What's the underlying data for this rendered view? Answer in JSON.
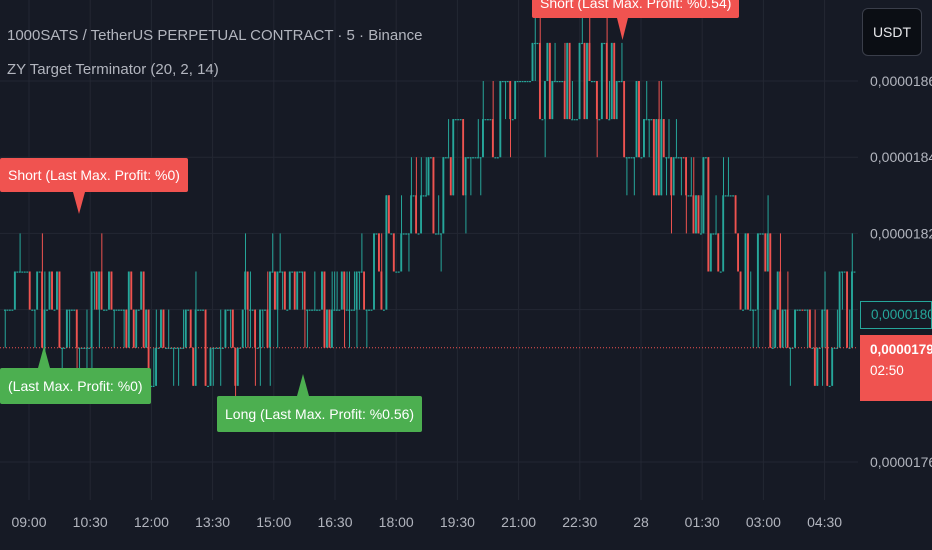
{
  "header": {
    "symbol_line": "1000SATS / TetherUS PERPETUAL CONTRACT · 5 · Binance",
    "indicator_line": "ZY Target Terminator (20, 2, 14)",
    "currency_button": "USDT"
  },
  "labels": {
    "short_top": "Short (Last Max. Profit: %0.54)",
    "short_left": "Short (Last Max. Profit: %0)",
    "long_left": "(Last Max. Profit: %0)",
    "long_mid": "Long (Last Max. Profit: %0.56)"
  },
  "price_tags": {
    "prev_price": "0,0000180",
    "last_price": "0,0000179",
    "countdown": "02:50"
  },
  "colors": {
    "background": "#161a25",
    "up": "#26a69a",
    "down": "#ef5350",
    "grid": "#232733",
    "axis_text": "#b2b5be",
    "short_label": "#f05350",
    "long_label": "#4caf50"
  },
  "chart_data": {
    "type": "candlestick",
    "grid": true,
    "y_axis": {
      "position": "right",
      "min": 1.755e-05,
      "max": 1.877e-05,
      "ticks": [
        1.86e-05,
        1.84e-05,
        1.82e-05,
        1.8e-05,
        1.76e-05
      ],
      "tick_labels": [
        "0,0000186",
        "0,0000184",
        "0,0000182",
        "0,0000180",
        "0,0000176"
      ]
    },
    "x_axis": {
      "tick_labels": [
        "09:00",
        "10:30",
        "12:00",
        "13:30",
        "15:00",
        "16:30",
        "18:00",
        "19:30",
        "21:00",
        "22:30",
        "28",
        "01:30",
        "03:00",
        "04:30"
      ]
    },
    "last_price": 1.79e-05,
    "price_path": [
      {
        "slot": 0,
        "price": 1.8e-05
      },
      {
        "slot": 30,
        "price": 1.8e-05
      },
      {
        "slot": 55,
        "price": 1.795e-05
      },
      {
        "slot": 85,
        "price": 1.79e-05
      },
      {
        "slot": 105,
        "price": 1.8e-05
      },
      {
        "slot": 130,
        "price": 1.8e-05
      },
      {
        "slot": 160,
        "price": 1.82e-05
      },
      {
        "slot": 185,
        "price": 1.84e-05
      },
      {
        "slot": 210,
        "price": 1.86e-05
      },
      {
        "slot": 240,
        "price": 1.86e-05
      },
      {
        "slot": 265,
        "price": 1.84e-05
      },
      {
        "slot": 290,
        "price": 1.82e-05
      },
      {
        "slot": 315,
        "price": 1.8e-05
      },
      {
        "slot": 328,
        "price": 1.79e-05
      },
      {
        "slot": 343,
        "price": 1.8e-05
      }
    ]
  }
}
